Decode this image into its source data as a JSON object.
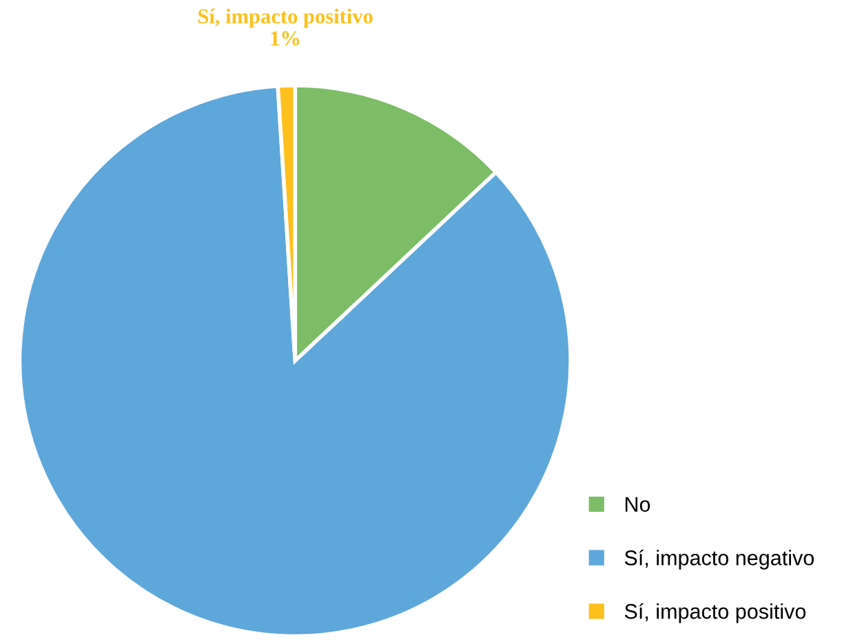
{
  "chart_data": {
    "type": "pie",
    "categories": [
      "No",
      "Sí, impacto negativo",
      "Sí, impacto positivo"
    ],
    "values": [
      13,
      86,
      1
    ],
    "colors": [
      "#7cbd65",
      "#5ea7da",
      "#fdc01d"
    ],
    "value_labels": [
      null,
      null,
      "1%"
    ],
    "legend": "bottom right"
  }
}
